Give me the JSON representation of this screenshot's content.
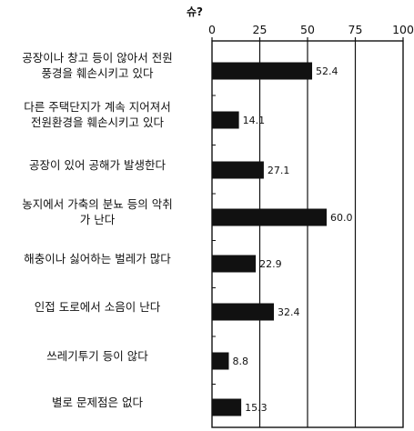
{
  "chart_data": {
    "type": "bar",
    "orientation": "horizontal",
    "unit_label": "슈?",
    "categories": [
      "공장이나 창고 등이 않아서 전원\n풍경을 훼손시키고 있다",
      "다른 주택단지가 계속 지어져서\n전원환경을 훼손시키고 있다",
      "공장이 있어 공해가 발생한다",
      "농지에서 가축의 분뇨 등의 악취\n가 난다",
      "해충이나 싫어하는 벌레가 많다",
      "인접 도로에서 소음이 난다",
      "쓰레기투기 등이 않다",
      "별로 문제점은 없다"
    ],
    "values": [
      52.4,
      14.1,
      27.1,
      60.0,
      22.9,
      32.4,
      8.8,
      15.3
    ],
    "value_labels": [
      "52.4",
      "14.1",
      "27.1",
      "60.0",
      "22.9",
      "32.4",
      "8.8",
      "15.3"
    ],
    "xticks": [
      "0",
      "25",
      "50",
      "75",
      "100"
    ],
    "xlim": [
      0,
      100
    ],
    "grid": "vertical lines at 25, 50, 75",
    "bar_color": "#111111"
  }
}
